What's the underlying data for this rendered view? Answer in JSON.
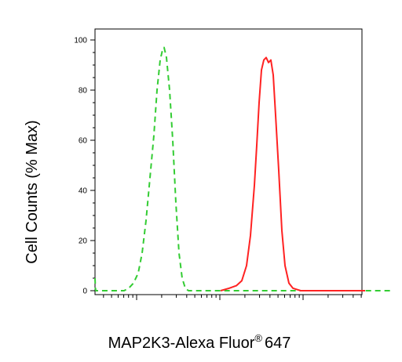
{
  "chart_data": {
    "type": "line",
    "xlabel": "MAP2K3-Alexa Fluor",
    "xlabel_superscript": "®",
    "xlabel_suffix": "647",
    "ylabel": "Cell Counts (% Max)",
    "ylim": [
      0,
      100
    ],
    "y_ticks": [
      "0",
      "20",
      "40",
      "60",
      "80",
      "100"
    ],
    "x_scale": "log",
    "x_tick_labels_visible": false,
    "grid": false,
    "series": [
      {
        "color": "#33cc33",
        "style": "dashed",
        "points": [
          [
            0,
            5
          ],
          [
            0.5,
            1
          ],
          [
            1,
            0
          ],
          [
            30,
            0
          ],
          [
            37,
            0
          ],
          [
            43,
            1
          ],
          [
            49,
            3
          ],
          [
            55,
            7
          ],
          [
            60,
            15
          ],
          [
            65,
            28
          ],
          [
            70,
            45
          ],
          [
            75,
            62
          ],
          [
            79,
            80
          ],
          [
            83,
            92
          ],
          [
            86,
            96
          ],
          [
            88,
            97
          ],
          [
            91,
            93
          ],
          [
            95,
            80
          ],
          [
            99,
            60
          ],
          [
            103,
            35
          ],
          [
            107,
            15
          ],
          [
            111,
            5
          ],
          [
            115,
            1
          ],
          [
            119,
            0
          ],
          [
            380,
            0
          ]
        ]
      },
      {
        "color": "#ff2222",
        "style": "solid",
        "points": [
          [
            160,
            0
          ],
          [
            171,
            1
          ],
          [
            180,
            2
          ],
          [
            187,
            4
          ],
          [
            193,
            10
          ],
          [
            198,
            22
          ],
          [
            203,
            42
          ],
          [
            206,
            58
          ],
          [
            209,
            75
          ],
          [
            212,
            88
          ],
          [
            215,
            92
          ],
          [
            218,
            93
          ],
          [
            221,
            91
          ],
          [
            224,
            92
          ],
          [
            227,
            86
          ],
          [
            230,
            70
          ],
          [
            234,
            48
          ],
          [
            238,
            24
          ],
          [
            242,
            10
          ],
          [
            247,
            3
          ],
          [
            252,
            1
          ],
          [
            262,
            0
          ],
          [
            344,
            0
          ]
        ]
      }
    ]
  }
}
